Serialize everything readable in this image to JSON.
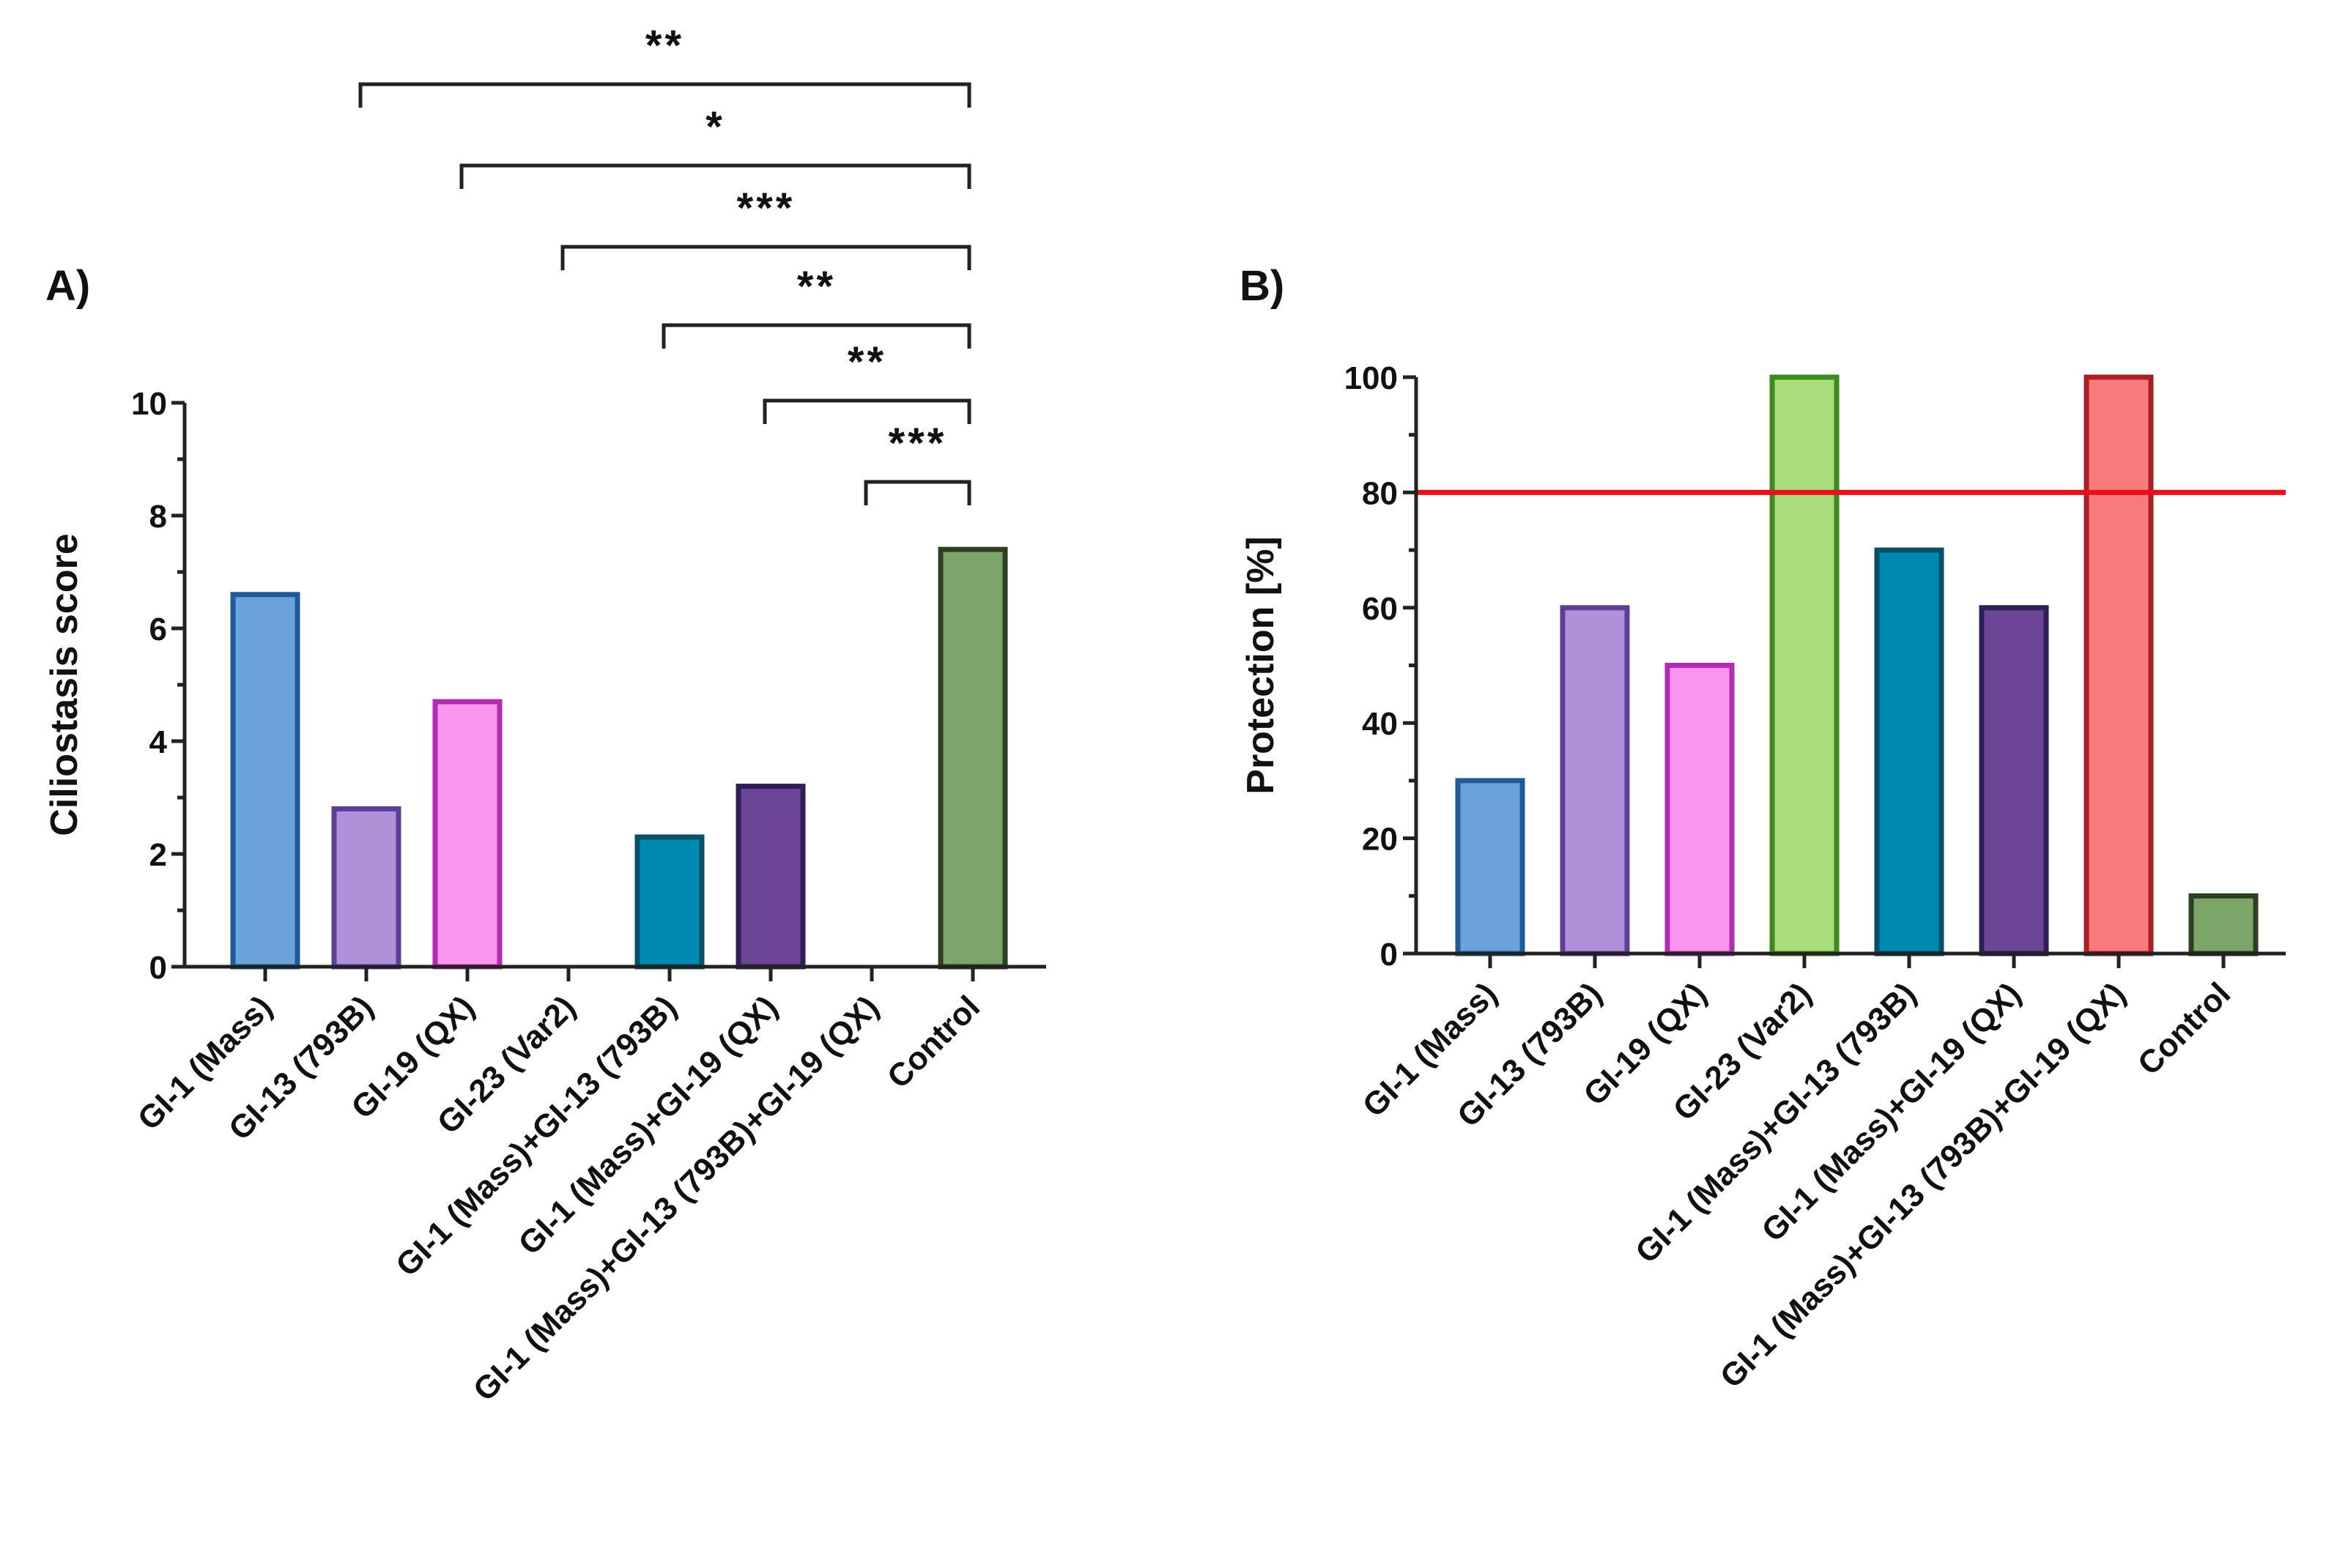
{
  "chart_data": [
    {
      "panel": "A)",
      "type": "bar",
      "ylabel": "Ciliostasis score",
      "ylim": [
        0,
        10
      ],
      "yticks": [
        0,
        2,
        4,
        6,
        8,
        10
      ],
      "categories": [
        "GI-1 (Mass)",
        "GI-13 (793B)",
        "GI-19 (QX)",
        "GI-23 (Var2)",
        "GI-1 (Mass)+GI-13 (793B)",
        "GI-1 (Mass)+GI-19 (QX)",
        "GI-1 (Mass)+GI-13 (793B)+GI-19 (QX)",
        "Control"
      ],
      "values": [
        6.6,
        2.8,
        4.7,
        0,
        2.3,
        3.2,
        0,
        7.4
      ],
      "fill_colors": [
        "#6aa2da",
        "#b090d8",
        "#f995ed",
        "#9fd86f",
        "#0089b0",
        "#6d4597",
        "#f07b7b",
        "#7ca56a"
      ],
      "border_colors": [
        "#1f5a99",
        "#5c3f96",
        "#b12cb0",
        "#3a8a1e",
        "#0a4f6a",
        "#2e1f57",
        "#b02020",
        "#2c3f22"
      ],
      "significance": [
        {
          "from": "GI-13 (793B)",
          "to": "Control",
          "label": "**"
        },
        {
          "from": "GI-19 (QX)",
          "to": "Control",
          "label": "*"
        },
        {
          "from": "GI-23 (Var2)",
          "to": "Control",
          "label": "***"
        },
        {
          "from": "GI-1 (Mass)+GI-13 (793B)",
          "to": "Control",
          "label": "**"
        },
        {
          "from": "GI-1 (Mass)+GI-19 (QX)",
          "to": "Control",
          "label": "**"
        },
        {
          "from": "GI-1 (Mass)+GI-13 (793B)+GI-19 (QX)",
          "to": "Control",
          "label": "***"
        }
      ]
    },
    {
      "panel": "B)",
      "type": "bar",
      "ylabel": "Protection [%]",
      "ylim": [
        0,
        100
      ],
      "yticks": [
        0,
        20,
        40,
        60,
        80,
        100
      ],
      "categories": [
        "GI-1 (Mass)",
        "GI-13 (793B)",
        "GI-19 (QX)",
        "GI-23 (Var2)",
        "GI-1 (Mass)+GI-13 (793B)",
        "GI-1 (Mass)+GI-19 (QX)",
        "GI-1 (Mass)+GI-13 (793B)+GI-19 (QX)",
        "Control"
      ],
      "values": [
        30,
        60,
        50,
        100,
        70,
        60,
        100,
        10
      ],
      "fill_colors": [
        "#6aa2da",
        "#b090d8",
        "#f995ed",
        "#a8dd7a",
        "#0089b0",
        "#6d4597",
        "#f87a7a",
        "#7ca56a"
      ],
      "border_colors": [
        "#1f5a99",
        "#5c3f96",
        "#b12cb0",
        "#3a8a1e",
        "#0a4f6a",
        "#2e1f57",
        "#a81f24",
        "#2c3f22"
      ],
      "threshold": {
        "value": 80,
        "color": "#e8101a"
      }
    }
  ]
}
